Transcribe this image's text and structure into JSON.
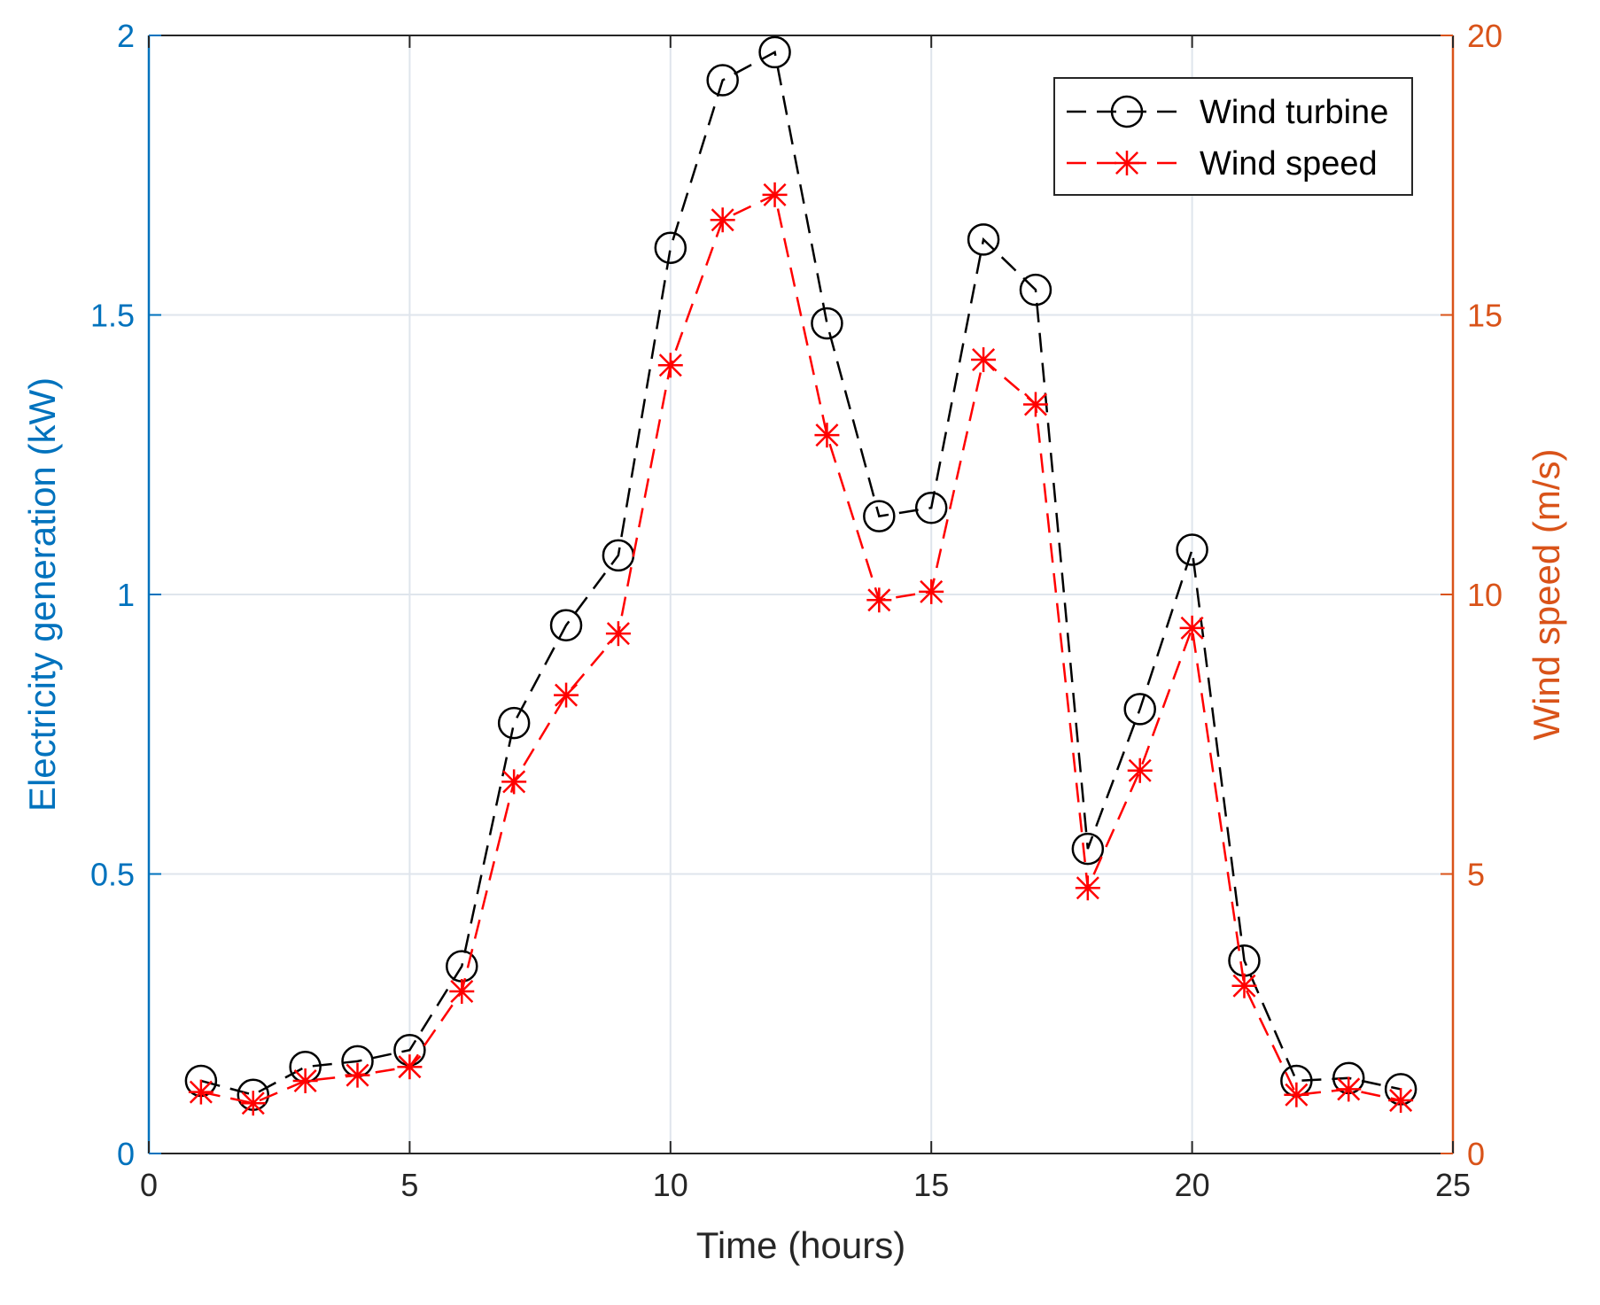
{
  "colors": {
    "left_axis": "#0072BD",
    "right_axis": "#D95319",
    "x_axis": "#262626",
    "grid": "#dfe5ec",
    "turbine_series": "#000000",
    "speed_series": "#ff0000"
  },
  "chart_data": {
    "type": "line",
    "xlabel": "Time (hours)",
    "ylabel_left": "Electricity generation (kW)",
    "ylabel_right": "Wind speed (m/s)",
    "xlim": [
      0,
      25
    ],
    "ylim_left": [
      0,
      2
    ],
    "ylim_right": [
      0,
      20
    ],
    "xticks": [
      "0",
      "5",
      "10",
      "15",
      "20",
      "25"
    ],
    "yticks_left": [
      "0",
      "0.5",
      "1",
      "1.5",
      "2"
    ],
    "yticks_right": [
      "0",
      "5",
      "10",
      "15",
      "20"
    ],
    "grid": true,
    "legend_position": "top-right",
    "series": [
      {
        "name": "Wind turbine",
        "axis": "left",
        "marker": "circle",
        "line_style": "dashed",
        "x": [
          1,
          2,
          3,
          4,
          5,
          6,
          7,
          8,
          9,
          10,
          11,
          12,
          13,
          14,
          15,
          16,
          17,
          18,
          19,
          20,
          21,
          22,
          23,
          24
        ],
        "values": [
          0.13,
          0.105,
          0.155,
          0.165,
          0.185,
          0.335,
          0.77,
          0.945,
          1.07,
          1.62,
          1.92,
          1.97,
          1.485,
          1.14,
          1.155,
          1.635,
          1.545,
          0.545,
          0.795,
          1.08,
          0.345,
          0.13,
          0.135,
          0.115
        ]
      },
      {
        "name": "Wind speed",
        "axis": "right",
        "marker": "asterisk",
        "line_style": "dashed",
        "x": [
          1,
          2,
          3,
          4,
          5,
          6,
          7,
          8,
          9,
          10,
          11,
          12,
          13,
          14,
          15,
          16,
          17,
          18,
          19,
          20,
          21,
          22,
          23,
          24
        ],
        "values": [
          1.1,
          0.9,
          1.3,
          1.4,
          1.55,
          2.9,
          6.65,
          8.2,
          9.3,
          14.1,
          16.7,
          17.15,
          12.85,
          9.9,
          10.05,
          14.2,
          13.4,
          4.75,
          6.85,
          9.4,
          3.0,
          1.05,
          1.15,
          0.95
        ]
      }
    ]
  }
}
